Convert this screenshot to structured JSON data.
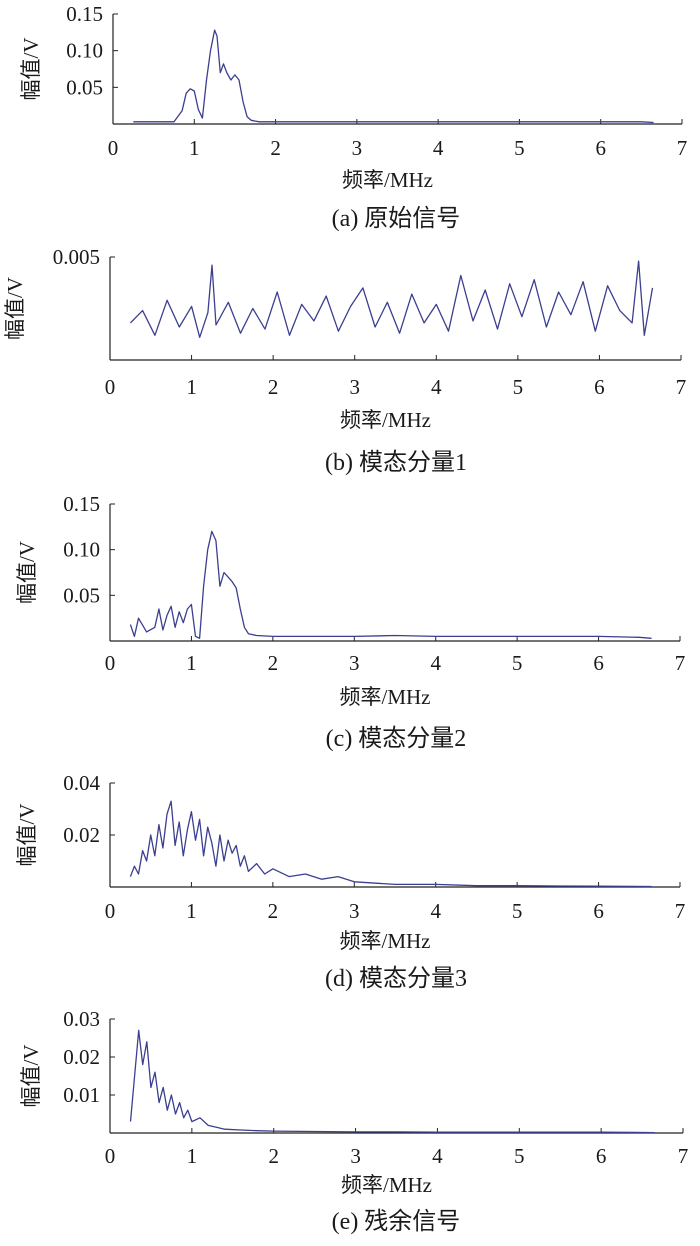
{
  "figure": {
    "line_color": "#3b3f8f",
    "axis_color": "#222222"
  },
  "chart_data": [
    {
      "type": "line",
      "caption": "(a) 原始信号",
      "xlabel": "频率/MHz",
      "ylabel": "幅值/V",
      "xlim": [
        0,
        7
      ],
      "ylim": [
        0,
        0.15
      ],
      "xticks": [
        "0",
        "1",
        "2",
        "3",
        "4",
        "5",
        "6",
        "7"
      ],
      "yticks": [
        {
          "value": 0.05,
          "label": "0.05"
        },
        {
          "value": 0.1,
          "label": "0.10"
        },
        {
          "value": 0.15,
          "label": "0.15"
        }
      ],
      "series": [
        {
          "x": [
            0.25,
            0.5,
            0.75,
            0.85,
            0.9,
            0.95,
            1.0,
            1.05,
            1.1,
            1.15,
            1.2,
            1.25,
            1.28,
            1.32,
            1.36,
            1.4,
            1.45,
            1.5,
            1.55,
            1.6,
            1.65,
            1.7,
            1.75,
            1.8,
            2.0,
            2.5,
            3.0,
            3.5,
            4.0,
            4.5,
            5.0,
            5.5,
            6.0,
            6.5,
            6.65
          ],
          "y": [
            0.003,
            0.003,
            0.003,
            0.018,
            0.042,
            0.048,
            0.045,
            0.02,
            0.008,
            0.06,
            0.1,
            0.128,
            0.12,
            0.07,
            0.082,
            0.07,
            0.06,
            0.067,
            0.06,
            0.03,
            0.01,
            0.005,
            0.004,
            0.003,
            0.003,
            0.003,
            0.003,
            0.003,
            0.003,
            0.003,
            0.003,
            0.003,
            0.003,
            0.003,
            0.002
          ]
        }
      ]
    },
    {
      "type": "line",
      "caption": "(b) 模态分量1",
      "xlabel": "频率/MHz",
      "ylabel": "幅值/V",
      "xlim": [
        0,
        7
      ],
      "ylim": [
        0,
        0.005
      ],
      "xticks": [
        "0",
        "1",
        "2",
        "3",
        "4",
        "5",
        "6",
        "7"
      ],
      "yticks": [
        {
          "value": 0.005,
          "label": "0.005"
        }
      ],
      "series": [
        {
          "x": [
            0.25,
            0.4,
            0.55,
            0.7,
            0.85,
            1.0,
            1.1,
            1.2,
            1.25,
            1.3,
            1.45,
            1.6,
            1.75,
            1.9,
            2.05,
            2.2,
            2.35,
            2.5,
            2.65,
            2.8,
            2.95,
            3.1,
            3.25,
            3.4,
            3.55,
            3.7,
            3.85,
            4.0,
            4.15,
            4.3,
            4.45,
            4.6,
            4.75,
            4.9,
            5.05,
            5.2,
            5.35,
            5.5,
            5.65,
            5.8,
            5.95,
            6.1,
            6.25,
            6.4,
            6.48,
            6.55,
            6.65
          ],
          "y": [
            0.0018,
            0.0024,
            0.0012,
            0.0029,
            0.0016,
            0.0026,
            0.0011,
            0.0023,
            0.0046,
            0.0017,
            0.0028,
            0.0013,
            0.0025,
            0.0015,
            0.0033,
            0.0012,
            0.0027,
            0.0019,
            0.0031,
            0.0014,
            0.0026,
            0.0035,
            0.0016,
            0.0028,
            0.0013,
            0.0032,
            0.0018,
            0.0027,
            0.0014,
            0.0041,
            0.0019,
            0.0034,
            0.0015,
            0.0037,
            0.0021,
            0.0039,
            0.0016,
            0.0033,
            0.0022,
            0.0038,
            0.0014,
            0.0036,
            0.0024,
            0.0018,
            0.0048,
            0.0012,
            0.0035
          ]
        }
      ]
    },
    {
      "type": "line",
      "caption": "(c) 模态分量2",
      "xlabel": "频率/MHz",
      "ylabel": "幅值/V",
      "xlim": [
        0,
        7
      ],
      "ylim": [
        0,
        0.15
      ],
      "xticks": [
        "0",
        "1",
        "2",
        "3",
        "4",
        "5",
        "6",
        "7"
      ],
      "yticks": [
        {
          "value": 0.05,
          "label": "0.05"
        },
        {
          "value": 0.1,
          "label": "0.10"
        },
        {
          "value": 0.15,
          "label": "0.15"
        }
      ],
      "series": [
        {
          "x": [
            0.25,
            0.3,
            0.35,
            0.45,
            0.55,
            0.6,
            0.65,
            0.7,
            0.75,
            0.8,
            0.85,
            0.9,
            0.95,
            1.0,
            1.05,
            1.1,
            1.15,
            1.2,
            1.25,
            1.3,
            1.35,
            1.4,
            1.45,
            1.5,
            1.55,
            1.6,
            1.65,
            1.7,
            1.8,
            2.0,
            2.5,
            3.0,
            3.5,
            4.0,
            4.5,
            5.0,
            5.5,
            6.0,
            6.5,
            6.65
          ],
          "y": [
            0.018,
            0.005,
            0.025,
            0.01,
            0.015,
            0.035,
            0.012,
            0.028,
            0.038,
            0.015,
            0.032,
            0.02,
            0.035,
            0.04,
            0.005,
            0.003,
            0.06,
            0.1,
            0.12,
            0.11,
            0.06,
            0.075,
            0.07,
            0.065,
            0.058,
            0.035,
            0.015,
            0.008,
            0.006,
            0.005,
            0.005,
            0.005,
            0.006,
            0.005,
            0.005,
            0.005,
            0.005,
            0.005,
            0.004,
            0.003
          ]
        }
      ]
    },
    {
      "type": "line",
      "caption": "(d) 模态分量3",
      "xlabel": "频率/MHz",
      "ylabel": "幅值/V",
      "xlim": [
        0,
        7
      ],
      "ylim": [
        0,
        0.04
      ],
      "xticks": [
        "0",
        "1",
        "2",
        "3",
        "4",
        "5",
        "6",
        "7"
      ],
      "yticks": [
        {
          "value": 0.02,
          "label": "0.02"
        },
        {
          "value": 0.04,
          "label": "0.04"
        }
      ],
      "series": [
        {
          "x": [
            0.25,
            0.3,
            0.35,
            0.4,
            0.45,
            0.5,
            0.55,
            0.6,
            0.65,
            0.7,
            0.75,
            0.8,
            0.85,
            0.9,
            0.95,
            1.0,
            1.05,
            1.1,
            1.15,
            1.2,
            1.25,
            1.3,
            1.35,
            1.4,
            1.45,
            1.5,
            1.55,
            1.6,
            1.65,
            1.7,
            1.8,
            1.9,
            2.0,
            2.2,
            2.4,
            2.6,
            2.8,
            3.0,
            3.5,
            4.0,
            4.5,
            5.0,
            5.5,
            6.0,
            6.65
          ],
          "y": [
            0.004,
            0.008,
            0.005,
            0.014,
            0.01,
            0.02,
            0.012,
            0.024,
            0.015,
            0.028,
            0.033,
            0.016,
            0.025,
            0.012,
            0.022,
            0.029,
            0.018,
            0.026,
            0.012,
            0.023,
            0.017,
            0.008,
            0.02,
            0.01,
            0.018,
            0.013,
            0.016,
            0.008,
            0.012,
            0.006,
            0.009,
            0.005,
            0.007,
            0.004,
            0.005,
            0.003,
            0.004,
            0.002,
            0.001,
            0.001,
            0.0005,
            0.0005,
            0.0004,
            0.0003,
            0.0002
          ]
        }
      ]
    },
    {
      "type": "line",
      "caption": "(e) 残余信号",
      "xlabel": "频率/MHz",
      "ylabel": "幅值/V",
      "xlim": [
        0,
        7
      ],
      "ylim": [
        0,
        0.03
      ],
      "xticks": [
        "0",
        "1",
        "2",
        "3",
        "4",
        "5",
        "6",
        "7"
      ],
      "yticks": [
        {
          "value": 0.01,
          "label": "0.01"
        },
        {
          "value": 0.02,
          "label": "0.02"
        },
        {
          "value": 0.03,
          "label": "0.03"
        }
      ],
      "series": [
        {
          "x": [
            0.25,
            0.3,
            0.35,
            0.4,
            0.45,
            0.5,
            0.55,
            0.6,
            0.65,
            0.7,
            0.75,
            0.8,
            0.85,
            0.9,
            0.95,
            1.0,
            1.1,
            1.2,
            1.3,
            1.4,
            1.6,
            1.8,
            2.0,
            2.5,
            3.0,
            3.5,
            4.0,
            5.0,
            6.0,
            6.65
          ],
          "y": [
            0.003,
            0.015,
            0.027,
            0.018,
            0.024,
            0.012,
            0.016,
            0.008,
            0.012,
            0.006,
            0.01,
            0.005,
            0.008,
            0.004,
            0.006,
            0.003,
            0.004,
            0.002,
            0.0015,
            0.001,
            0.0008,
            0.0006,
            0.0005,
            0.0004,
            0.0003,
            0.0003,
            0.0002,
            0.0002,
            0.0002,
            0.0001
          ]
        }
      ]
    }
  ]
}
